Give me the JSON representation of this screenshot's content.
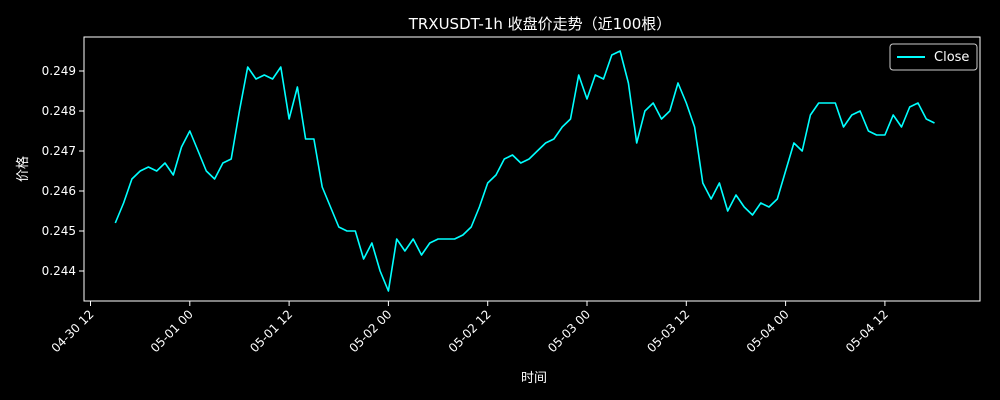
{
  "chart_data": {
    "type": "line",
    "title": "TRXUSDT-1h 收盘价走势（近100根）",
    "xlabel": "时间",
    "ylabel": "价格",
    "legend_position": "top-right",
    "grid": false,
    "colors": {
      "background": "#000000",
      "line": "#00ffff",
      "axes": "#ffffff"
    },
    "x_ticks": [
      "04-30 12",
      "05-01 00",
      "05-01 12",
      "05-02 00",
      "05-02 12",
      "05-03 00",
      "05-03 12",
      "05-04 00",
      "05-04 12"
    ],
    "x_start": "2024-04-30 15:00",
    "x_interval_hours": 1,
    "y_ticks": [
      "0.244",
      "0.245",
      "0.246",
      "0.247",
      "0.248",
      "0.249"
    ],
    "ylim": [
      0.24325,
      0.24985
    ],
    "series": [
      {
        "name": "Close",
        "values": [
          0.2452,
          0.2457,
          0.2463,
          0.2465,
          0.2466,
          0.2465,
          0.2467,
          0.2464,
          0.2471,
          0.2475,
          0.247,
          0.2465,
          0.2463,
          0.2467,
          0.2468,
          0.248,
          0.2491,
          0.2488,
          0.2489,
          0.2488,
          0.2491,
          0.2478,
          0.2486,
          0.2473,
          0.2473,
          0.2461,
          0.2456,
          0.2451,
          0.245,
          0.245,
          0.2443,
          0.2447,
          0.244,
          0.2435,
          0.2448,
          0.2445,
          0.2448,
          0.2444,
          0.2447,
          0.2448,
          0.2448,
          0.2448,
          0.2449,
          0.2451,
          0.2456,
          0.2462,
          0.2464,
          0.2468,
          0.2469,
          0.2467,
          0.2468,
          0.247,
          0.2472,
          0.2473,
          0.2476,
          0.2478,
          0.2489,
          0.2483,
          0.2489,
          0.2488,
          0.2494,
          0.2495,
          0.2487,
          0.2472,
          0.248,
          0.2482,
          0.2478,
          0.248,
          0.2487,
          0.2482,
          0.2476,
          0.2462,
          0.2458,
          0.2462,
          0.2455,
          0.2459,
          0.2456,
          0.2454,
          0.2457,
          0.2456,
          0.2458,
          0.2465,
          0.2472,
          0.247,
          0.2479,
          0.2482,
          0.2482,
          0.2482,
          0.2476,
          0.2479,
          0.248,
          0.2475,
          0.2474,
          0.2474,
          0.2479,
          0.2476,
          0.2481,
          0.2482,
          0.2478,
          0.2477
        ]
      }
    ]
  }
}
